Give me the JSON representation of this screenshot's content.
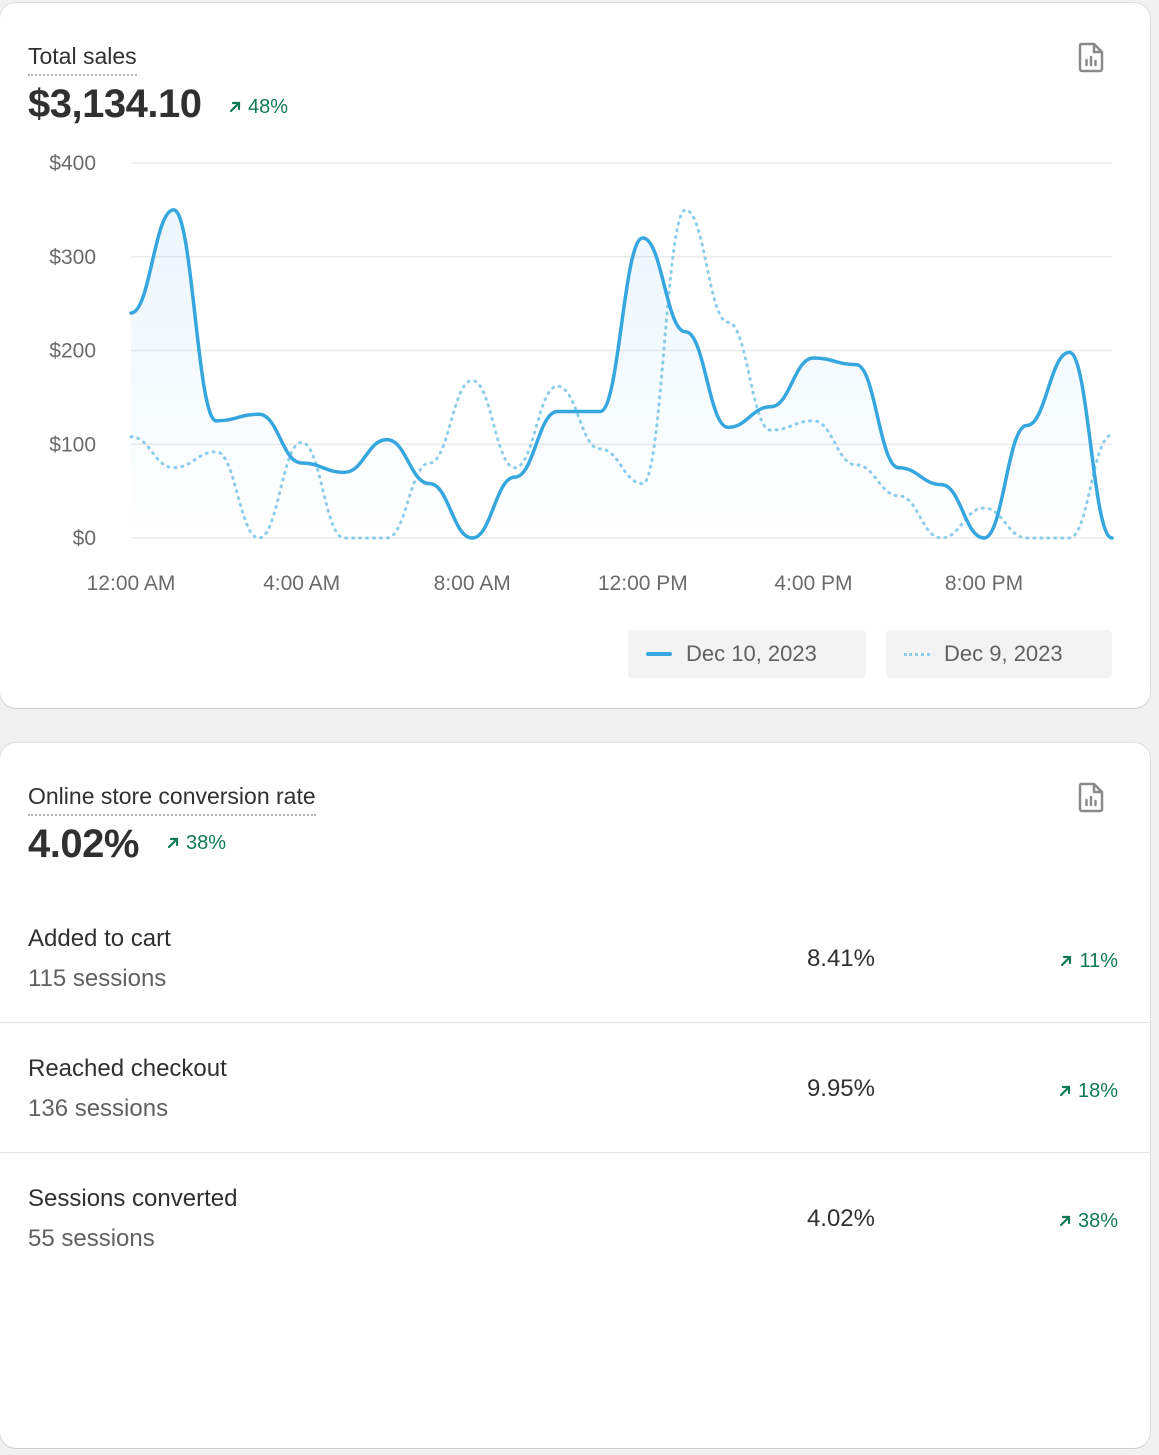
{
  "sales_card": {
    "title": "Total sales",
    "value": "$3,134.10",
    "delta": "48%",
    "icon": "report-icon"
  },
  "chart_data": {
    "type": "line",
    "title": "Total sales",
    "xlabel": "",
    "ylabel": "",
    "x": [
      "12:00 AM",
      "1:00 AM",
      "2:00 AM",
      "3:00 AM",
      "4:00 AM",
      "5:00 AM",
      "6:00 AM",
      "7:00 AM",
      "8:00 AM",
      "9:00 AM",
      "10:00 AM",
      "11:00 AM",
      "12:00 PM",
      "1:00 PM",
      "2:00 PM",
      "3:00 PM",
      "4:00 PM",
      "5:00 PM",
      "6:00 PM",
      "7:00 PM",
      "8:00 PM",
      "9:00 PM",
      "10:00 PM",
      "11:00 PM"
    ],
    "x_tick_labels": [
      "12:00 AM",
      "4:00 AM",
      "8:00 AM",
      "12:00 PM",
      "4:00 PM",
      "8:00 PM"
    ],
    "y_tick_labels": [
      "$0",
      "$100",
      "$200",
      "$300",
      "$400"
    ],
    "y_ticks": [
      0,
      100,
      200,
      300,
      400
    ],
    "ylim": [
      0,
      400
    ],
    "grid": true,
    "legend_position": "bottom-right",
    "colors": {
      "current": "#36a7de",
      "previous": "#8ccde9"
    },
    "series": [
      {
        "name": "Dec 10, 2023",
        "style": "solid",
        "values": [
          240,
          350,
          125,
          132,
          80,
          70,
          105,
          58,
          0,
          65,
          135,
          135,
          320,
          220,
          118,
          140,
          192,
          185,
          75,
          57,
          0,
          120,
          198,
          0
        ]
      },
      {
        "name": "Dec 9, 2023",
        "style": "dotted",
        "values": [
          108,
          75,
          92,
          0,
          102,
          0,
          0,
          80,
          168,
          75,
          162,
          95,
          58,
          350,
          230,
          115,
          125,
          78,
          45,
          0,
          32,
          0,
          0,
          110
        ]
      }
    ]
  },
  "legend": {
    "current": "Dec 10, 2023",
    "previous": "Dec 9, 2023"
  },
  "conversion_card": {
    "title": "Online store conversion rate",
    "value": "4.02%",
    "delta": "38%",
    "rows": [
      {
        "label": "Added to cart",
        "sessions": "115 sessions",
        "rate": "8.41%",
        "delta": "11%"
      },
      {
        "label": "Reached checkout",
        "sessions": "136 sessions",
        "rate": "9.95%",
        "delta": "18%"
      },
      {
        "label": "Sessions converted",
        "sessions": "55 sessions",
        "rate": "4.02%",
        "delta": "38%"
      }
    ]
  }
}
